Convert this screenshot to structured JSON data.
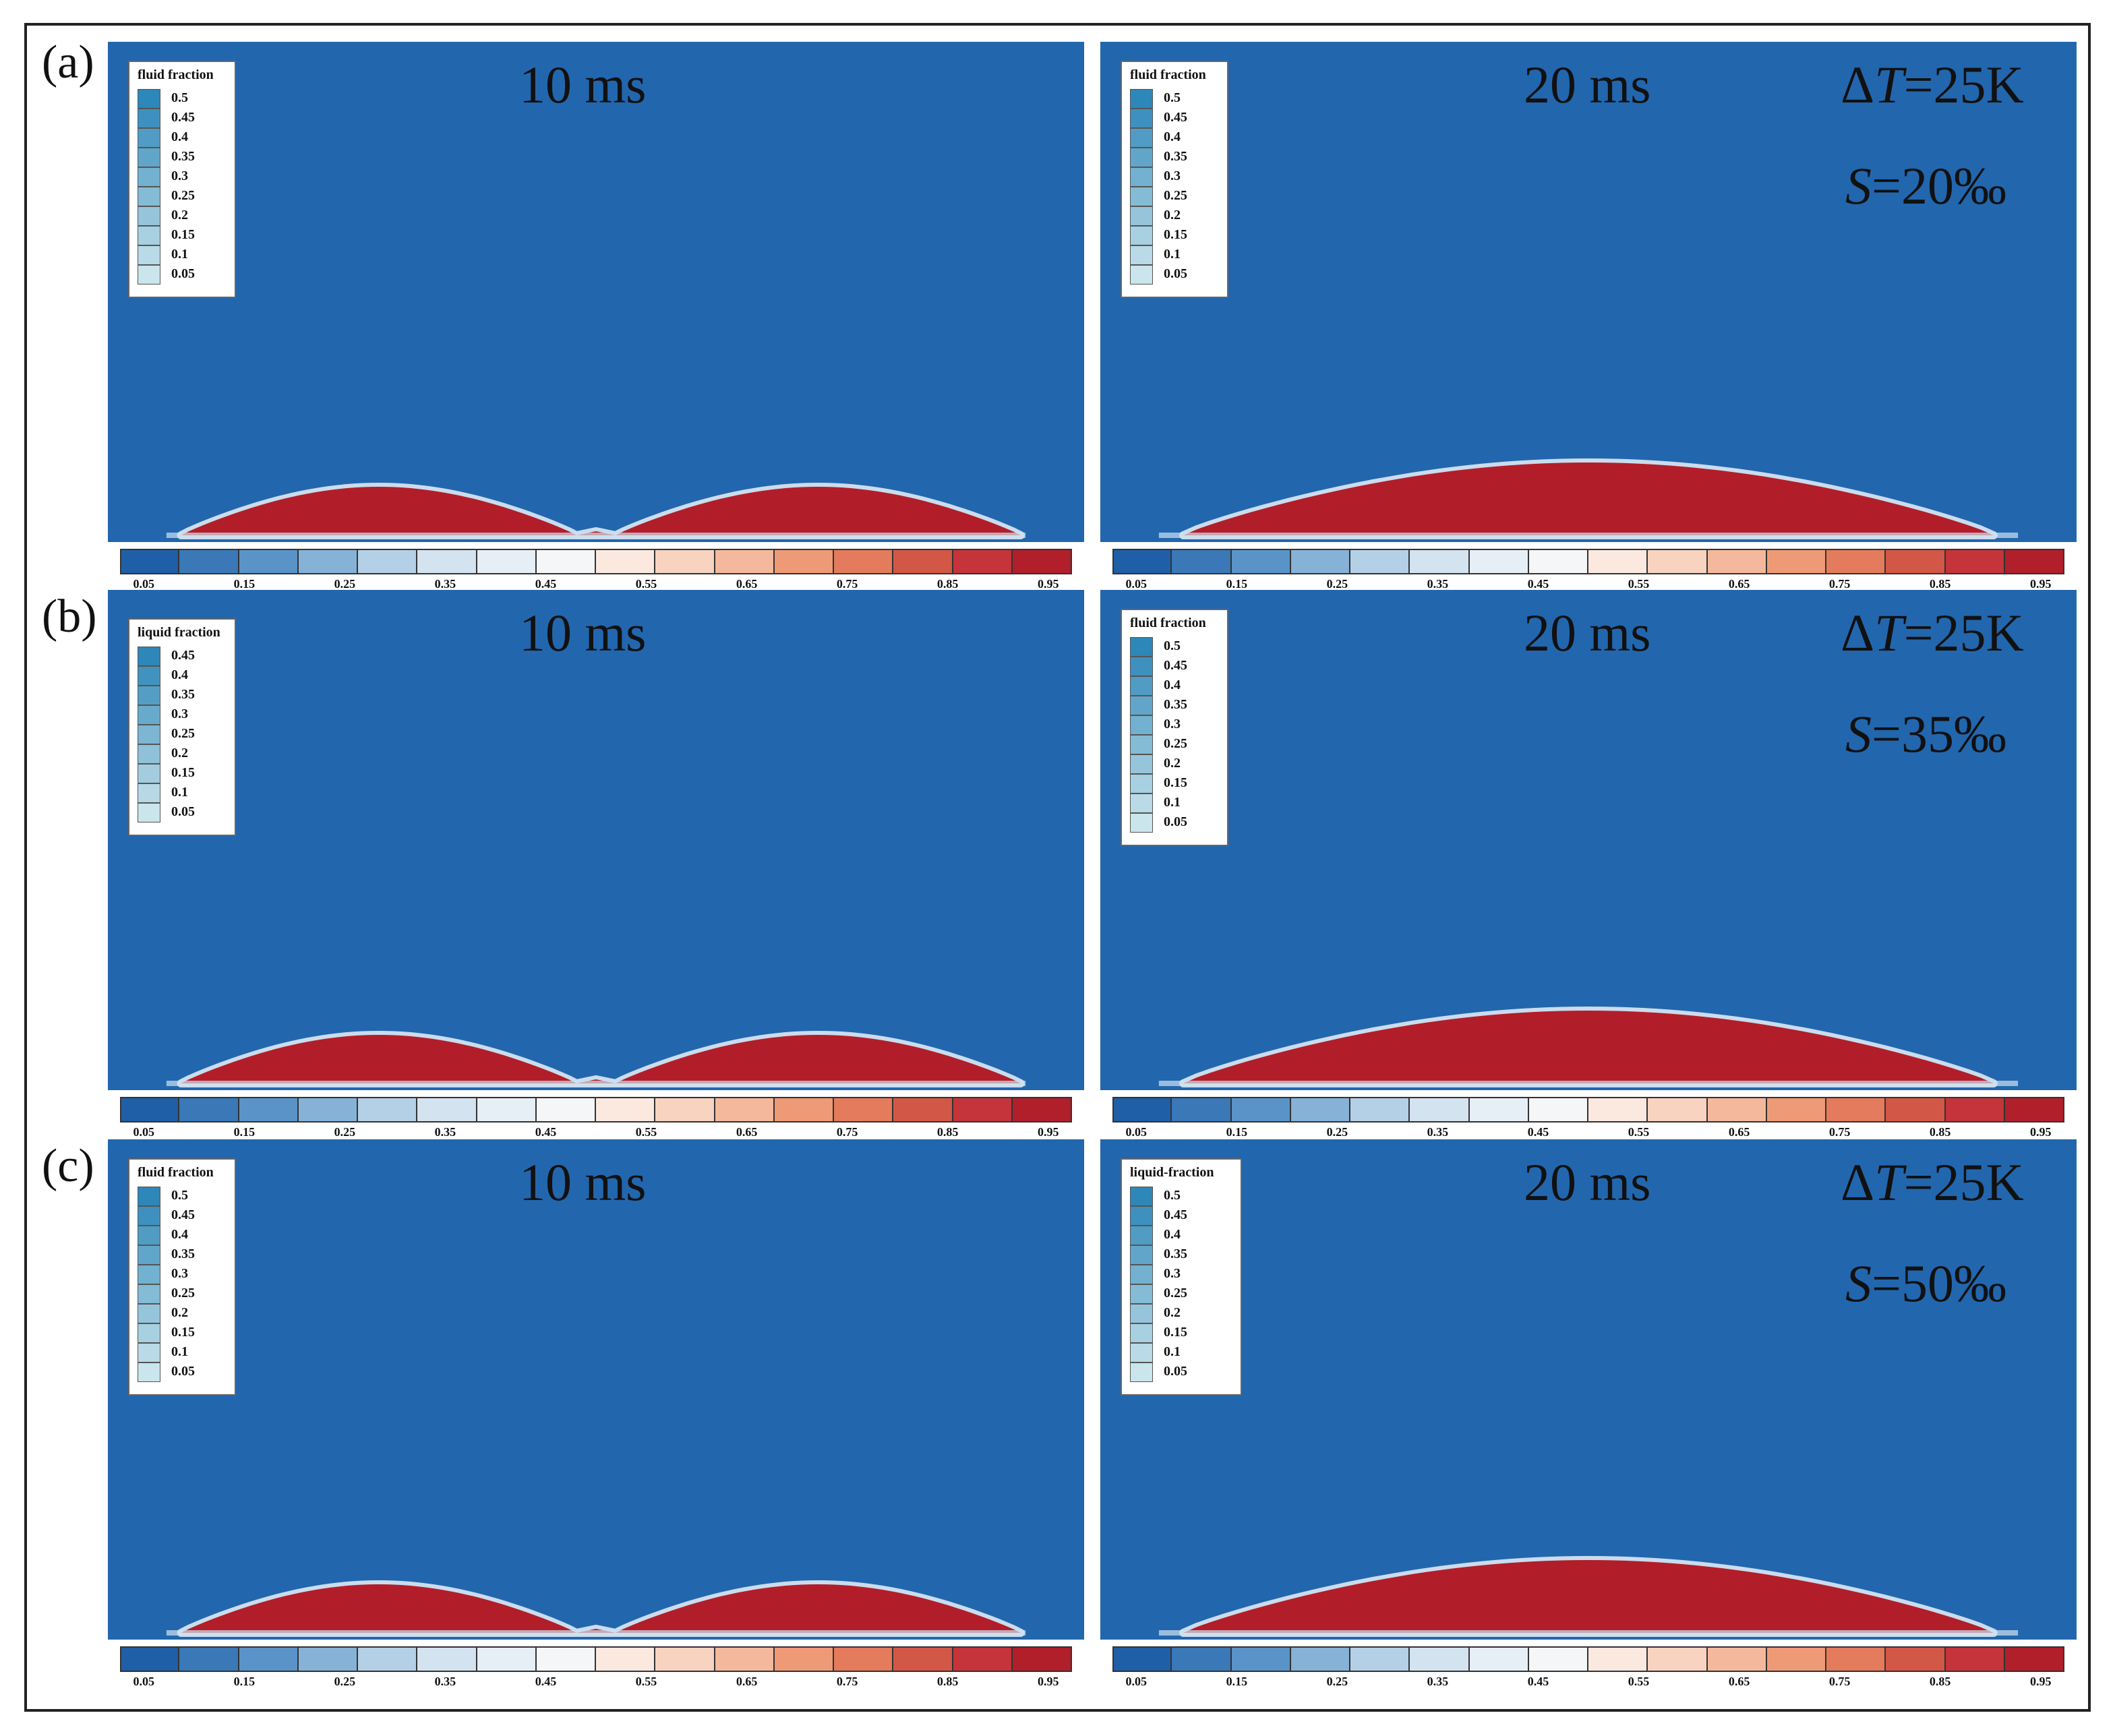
{
  "figure": {
    "rows": [
      {
        "label": "(a)",
        "panels": [
          {
            "time": "10 ms",
            "legend_title": "fluid fraction",
            "legend_values": [
              "0.5",
              "0.45",
              "0.4",
              "0.35",
              "0.3",
              "0.25",
              "0.2",
              "0.15",
              "0.1",
              "0.05"
            ],
            "conditions": []
          },
          {
            "time": "20 ms",
            "legend_title": "fluid fraction",
            "legend_values": [
              "0.5",
              "0.45",
              "0.4",
              "0.35",
              "0.3",
              "0.25",
              "0.2",
              "0.15",
              "0.1",
              "0.05"
            ],
            "conditions": [
              "ΔT=25K",
              "S=20‰"
            ]
          }
        ]
      },
      {
        "label": "(b)",
        "panels": [
          {
            "time": "10 ms",
            "legend_title": "liquid fraction",
            "legend_values": [
              "0.45",
              "0.4",
              "0.35",
              "0.3",
              "0.25",
              "0.2",
              "0.15",
              "0.1",
              "0.05"
            ],
            "conditions": []
          },
          {
            "time": "20 ms",
            "legend_title": "fluid fraction",
            "legend_values": [
              "0.5",
              "0.45",
              "0.4",
              "0.35",
              "0.3",
              "0.25",
              "0.2",
              "0.15",
              "0.1",
              "0.05"
            ],
            "conditions": [
              "ΔT=25K",
              "S=35‰"
            ]
          }
        ]
      },
      {
        "label": "(c)",
        "panels": [
          {
            "time": "10 ms",
            "legend_title": "fluid fraction",
            "legend_values": [
              "0.5",
              "0.45",
              "0.4",
              "0.35",
              "0.3",
              "0.25",
              "0.2",
              "0.15",
              "0.1",
              "0.05"
            ],
            "conditions": []
          },
          {
            "time": "20 ms",
            "legend_title": "liquid-fraction",
            "legend_values": [
              "0.5",
              "0.45",
              "0.4",
              "0.35",
              "0.3",
              "0.25",
              "0.2",
              "0.15",
              "0.1",
              "0.05"
            ],
            "conditions": [
              "ΔT=25K",
              "S=50‰"
            ]
          }
        ]
      }
    ],
    "colorbar": {
      "ticks": [
        "0.05",
        "0.15",
        "0.25",
        "0.35",
        "0.45",
        "0.55",
        "0.65",
        "0.75",
        "0.85",
        "0.95"
      ],
      "colors": [
        "#1f5fa8",
        "#3a78b8",
        "#5a93c8",
        "#86b2d8",
        "#b4d0e6",
        "#d4e3f0",
        "#e6eef6",
        "#f4f6f8",
        "#fbe9e0",
        "#f7d3c0",
        "#f4b99c",
        "#ef9a77",
        "#e47b5c",
        "#d35746",
        "#c4343a",
        "#b11f2b"
      ]
    },
    "colors": {
      "vapor": "#2266ae",
      "liquid": "#b11e2a",
      "interface": "#e8f1f8"
    }
  }
}
